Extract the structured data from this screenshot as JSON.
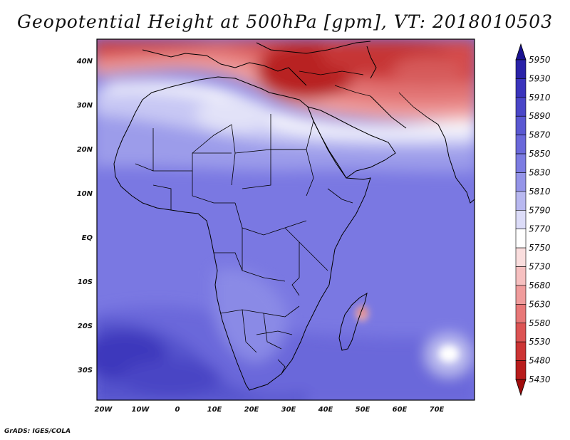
{
  "title": "Geopotential Height at 500hPa [gpm], VT: 2018010503",
  "credit": "GrADS: IGES/COLA",
  "map": {
    "lon_range": [
      -22,
      80
    ],
    "lat_range": [
      -37,
      45
    ],
    "x_ticks": [
      "20W",
      "10W",
      "0",
      "10E",
      "20E",
      "30E",
      "40E",
      "50E",
      "60E",
      "70E"
    ],
    "y_ticks": [
      "40N",
      "30N",
      "20N",
      "10N",
      "EQ",
      "10S",
      "20S",
      "30S"
    ]
  },
  "colorbar": {
    "levels": [
      "5950",
      "5930",
      "5910",
      "5890",
      "5870",
      "5850",
      "5830",
      "5810",
      "5790",
      "5770",
      "5750",
      "5730",
      "5680",
      "5630",
      "5580",
      "5530",
      "5480",
      "5430"
    ],
    "colors": [
      "#1a1290",
      "#2a22a8",
      "#3a34bc",
      "#4a46c8",
      "#5a58d2",
      "#6a68da",
      "#7c7ce2",
      "#9494e8",
      "#b8b8f0",
      "#dcdcf8",
      "#ffffff",
      "#fadede",
      "#f6c0c0",
      "#f09c9c",
      "#e87878",
      "#dc5454",
      "#cc3434",
      "#b81c1c",
      "#a00c0c"
    ]
  }
}
